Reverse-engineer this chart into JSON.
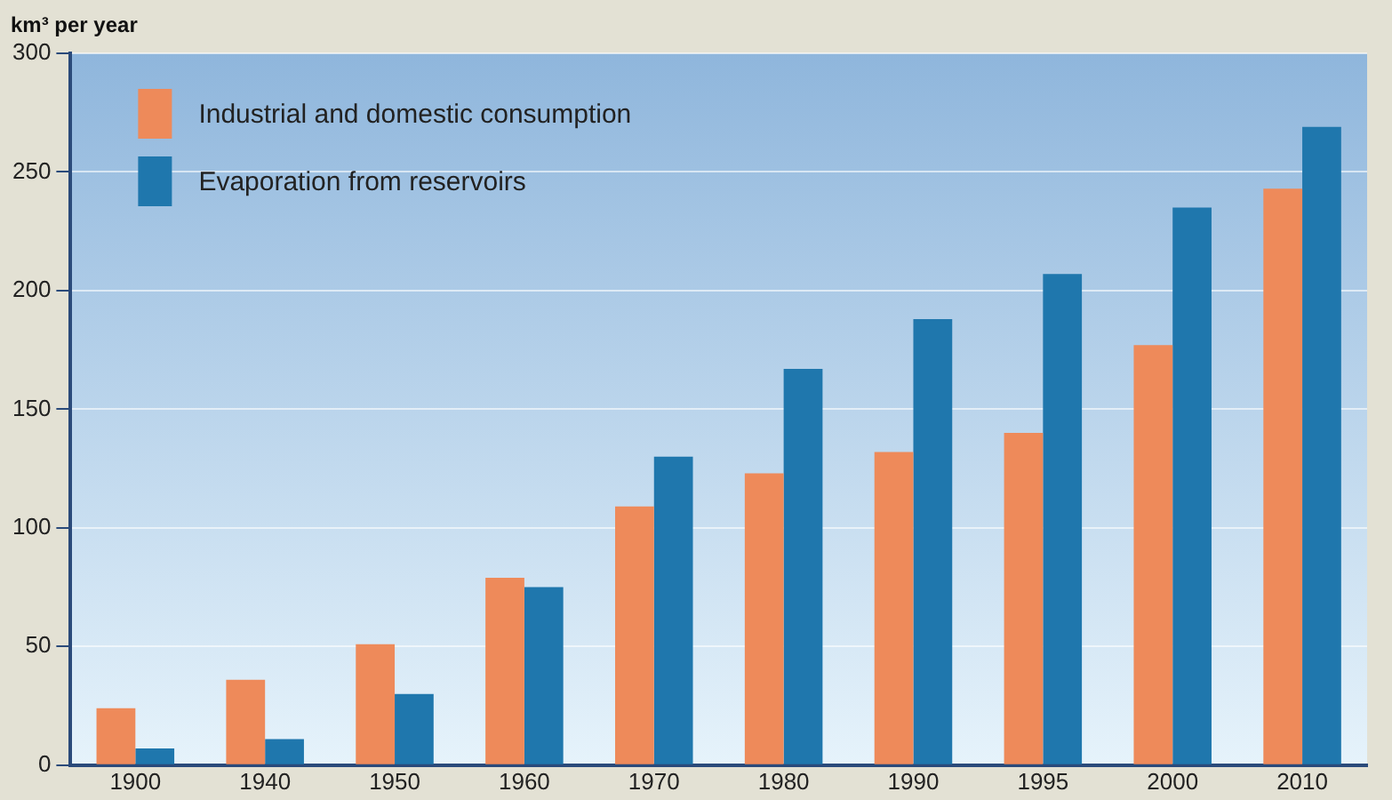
{
  "chart_data": {
    "type": "bar",
    "ylabel": "km³ per year",
    "categories": [
      "1900",
      "1940",
      "1950",
      "1960",
      "1970",
      "1980",
      "1990",
      "1995",
      "2000",
      "2010"
    ],
    "series": [
      {
        "name": "Industrial and domestic consumption",
        "color": "#ee8a5a",
        "values": [
          24,
          36,
          51,
          79,
          109,
          123,
          132,
          140,
          177,
          243
        ]
      },
      {
        "name": "Evaporation from reservoirs",
        "color": "#1f77ad",
        "values": [
          7,
          11,
          30,
          75,
          130,
          167,
          188,
          207,
          235,
          269
        ]
      }
    ],
    "ylim": [
      0,
      300
    ],
    "yticks": [
      0,
      50,
      100,
      150,
      200,
      250,
      300
    ],
    "grid": "y",
    "legend": "top left"
  }
}
